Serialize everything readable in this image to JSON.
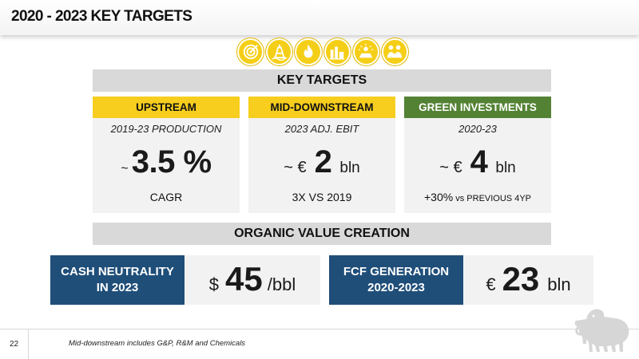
{
  "header": {
    "title": "2020 - 2023 KEY TARGETS"
  },
  "icons": [
    "target-icon",
    "oil-rig-icon",
    "flame-icon",
    "refinery-icon",
    "solar-icon",
    "handshake-icon"
  ],
  "key_targets": {
    "label": "KEY TARGETS"
  },
  "cards": [
    {
      "heading": "UPSTREAM",
      "subtitle": "2019-23 PRODUCTION",
      "prefix": "~",
      "value": "3.5 %",
      "unit": "",
      "footer": "CAGR",
      "footer_small": "",
      "color": "#f7ce1e"
    },
    {
      "heading": "MID-DOWNSTREAM",
      "subtitle": "2023 ADJ. EBIT",
      "prefix": "~ €",
      "value": "2",
      "unit": "bln",
      "footer": "3X VS 2019",
      "footer_small": "",
      "color": "#f7ce1e"
    },
    {
      "heading": "GREEN INVESTMENTS",
      "subtitle": "2020-23",
      "prefix": "~ €",
      "value": "4",
      "unit": "bln",
      "footer": "+30%",
      "footer_small": " vs PREVIOUS 4YP",
      "color": "#548235"
    }
  ],
  "organic": {
    "label": "ORGANIC VALUE CREATION"
  },
  "cash": {
    "label_line1": "CASH NEUTRALITY",
    "label_line2": "IN 2023",
    "prefix": "$",
    "value": "45",
    "unit": "/bbl"
  },
  "fcf": {
    "label_line1": "FCF GENERATION",
    "label_line2": "2020-2023",
    "prefix": "€",
    "value": "23",
    "unit": "bln"
  },
  "footer": {
    "page_number": "22",
    "note": "Mid-downstream includes G&P, R&M and Chemicals"
  },
  "colors": {
    "yellow": "#f7ce1e",
    "green": "#548235",
    "navy": "#1f4e79",
    "grey": "#f2f2f2"
  },
  "logo": "six-legged-dog-logo"
}
